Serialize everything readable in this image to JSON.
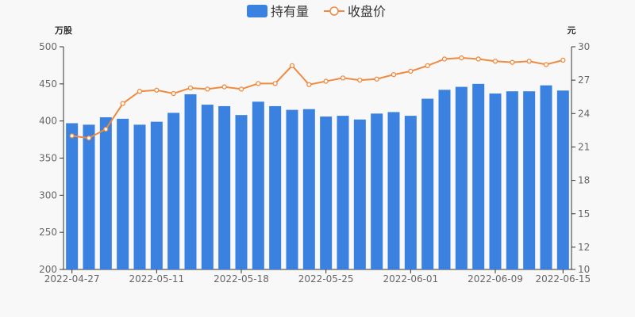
{
  "chart_data": {
    "type": "bar",
    "legend": {
      "placement": "top-center",
      "items": [
        {
          "name": "持有量",
          "marker": "rect"
        },
        {
          "name": "收盘价",
          "marker": "line-circle"
        }
      ]
    },
    "y_left": {
      "unit": "万股",
      "min": 200,
      "max": 500,
      "ticks": [
        200,
        250,
        300,
        350,
        400,
        450,
        500
      ]
    },
    "y_right": {
      "unit": "元",
      "min": 10,
      "max": 30,
      "ticks": [
        10,
        12,
        15,
        18,
        21,
        24,
        27,
        30
      ]
    },
    "x_tick_labels": [
      {
        "index": 0,
        "label": "2022-04-27"
      },
      {
        "index": 5,
        "label": "2022-05-11"
      },
      {
        "index": 10,
        "label": "2022-05-18"
      },
      {
        "index": 15,
        "label": "2022-05-25"
      },
      {
        "index": 20,
        "label": "2022-06-01"
      },
      {
        "index": 25,
        "label": "2022-06-09"
      },
      {
        "index": 29,
        "label": "2022-06-15"
      }
    ],
    "series": [
      {
        "name": "持有量",
        "type": "bar",
        "axis": "left",
        "color": "#3b82e0",
        "values": [
          397,
          395,
          405,
          403,
          395,
          399,
          411,
          436,
          422,
          420,
          408,
          426,
          420,
          415,
          416,
          406,
          407,
          402,
          410,
          412,
          407,
          430,
          442,
          446,
          450,
          437,
          440,
          440,
          448,
          441
        ]
      },
      {
        "name": "收盘价",
        "type": "line",
        "axis": "right",
        "color": "#f08a40",
        "values": [
          22.0,
          21.8,
          22.6,
          24.9,
          26.0,
          26.1,
          25.8,
          26.3,
          26.2,
          26.4,
          26.2,
          26.7,
          26.7,
          28.3,
          26.6,
          26.9,
          27.2,
          27.0,
          27.1,
          27.5,
          27.8,
          28.3,
          28.9,
          29.0,
          28.9,
          28.7,
          28.6,
          28.7,
          28.4,
          28.8
        ]
      }
    ]
  }
}
